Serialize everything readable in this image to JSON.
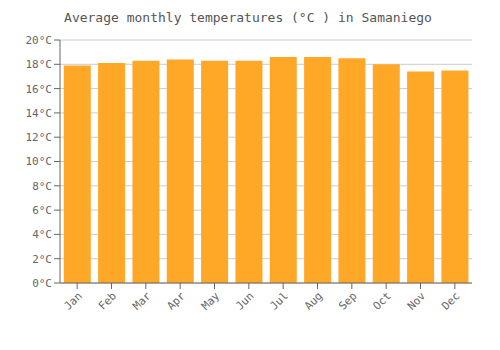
{
  "chart_data": {
    "type": "bar",
    "title": "Average monthly temperatures (°C ) in Samaniego",
    "categories": [
      "Jan",
      "Feb",
      "Mar",
      "Apr",
      "May",
      "Jun",
      "Jul",
      "Aug",
      "Sep",
      "Oct",
      "Nov",
      "Dec"
    ],
    "values": [
      17.9,
      18.1,
      18.3,
      18.4,
      18.3,
      18.3,
      18.6,
      18.6,
      18.5,
      18.0,
      17.4,
      17.5
    ],
    "color": "#FFA726",
    "ylim": [
      0,
      20
    ],
    "yticks": [
      {
        "value": 0,
        "label": "0°C"
      },
      {
        "value": 2,
        "label": "2°C"
      },
      {
        "value": 4,
        "label": "4°C"
      },
      {
        "value": 6,
        "label": "6°C"
      },
      {
        "value": 8,
        "label": "8°C"
      },
      {
        "value": 10,
        "label": "10°C"
      },
      {
        "value": 12,
        "label": "12°C"
      },
      {
        "value": 14,
        "label": "14°C"
      },
      {
        "value": 16,
        "label": "16°C"
      },
      {
        "value": 18,
        "label": "18°C"
      },
      {
        "value": 20,
        "label": "20°C"
      }
    ],
    "grid": true
  }
}
